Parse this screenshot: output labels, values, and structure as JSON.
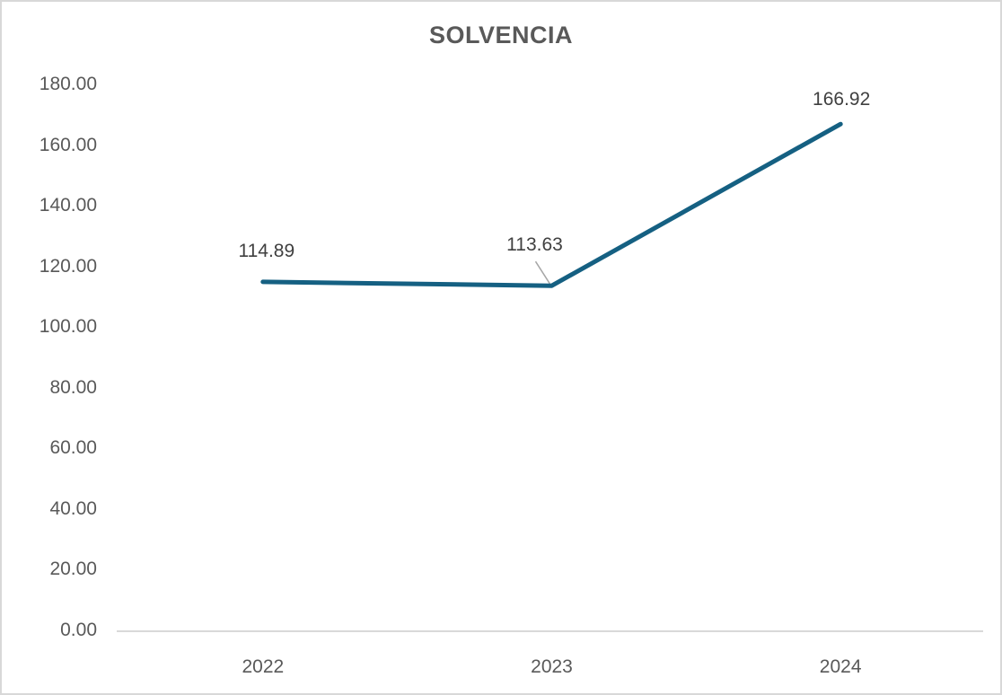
{
  "chart_data": {
    "type": "line",
    "title": "SOLVENCIA",
    "categories": [
      "2022",
      "2023",
      "2024"
    ],
    "series": [
      {
        "name": "SOLVENCIA",
        "values": [
          114.89,
          113.63,
          166.92
        ]
      }
    ],
    "data_labels": [
      "114.89",
      "113.63",
      "166.92"
    ],
    "y_ticks": [
      "180.00",
      "160.00",
      "140.00",
      "120.00",
      "100.00",
      "80.00",
      "60.00",
      "40.00",
      "20.00",
      "0.00"
    ],
    "ylim": [
      0,
      180
    ],
    "y_tick_step": 20,
    "grid": false,
    "legend": "none",
    "colors": {
      "line": "#156082",
      "title_text": "#595959",
      "axis_text": "#595959",
      "data_label_text": "#404040",
      "axis_line": "#d9d9d9",
      "leader_line": "#a6a6a6",
      "background": "#ffffff",
      "frame_border": "#d8d8d8"
    }
  }
}
